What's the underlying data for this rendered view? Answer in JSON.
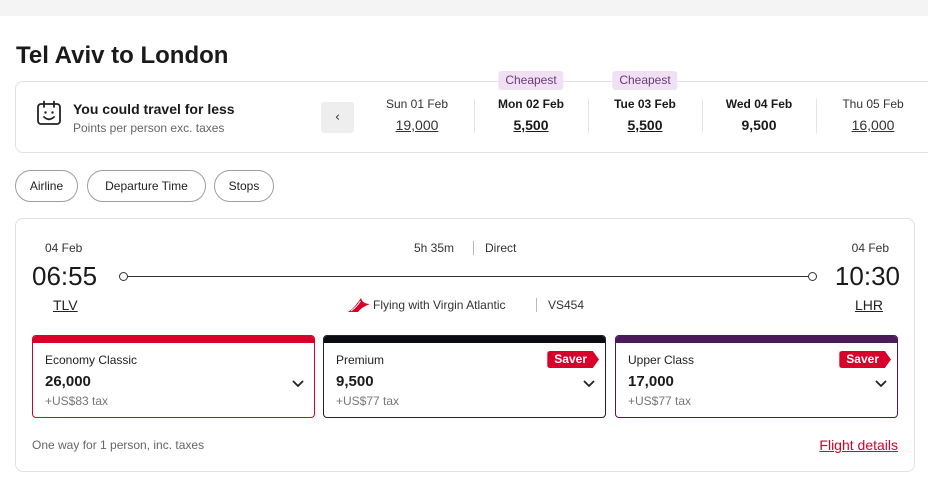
{
  "page": {
    "title": "Tel Aviv to London"
  },
  "fare_bar": {
    "headline": "You could travel for less",
    "subtext": "Points per person exc. taxes",
    "icon": "calendar-smile-icon",
    "prev_label": "‹",
    "dates": [
      {
        "label": "Sun 01 Feb",
        "points": "19,000",
        "cheapest": "",
        "selected": false
      },
      {
        "label": "Mon 02 Feb",
        "points": "5,500",
        "cheapest": "Cheapest",
        "selected": false
      },
      {
        "label": "Tue 03 Feb",
        "points": "5,500",
        "cheapest": "Cheapest",
        "selected": false
      },
      {
        "label": "Wed 04 Feb",
        "points": "9,500",
        "cheapest": "",
        "selected": true
      },
      {
        "label": "Thu 05 Feb",
        "points": "16,000",
        "cheapest": "",
        "selected": false
      }
    ]
  },
  "filters": [
    "Airline",
    "Departure Time",
    "Stops"
  ],
  "flight": {
    "depart_date": "04 Feb",
    "arrive_date": "04 Feb",
    "depart_time": "06:55",
    "arrive_time": "10:30",
    "depart_code": "TLV",
    "arrive_code": "LHR",
    "duration": "5h 35m",
    "stops": "Direct",
    "operator": "Flying with Virgin Atlantic",
    "flight_number": "VS454",
    "cabins": [
      {
        "name": "Economy Classic",
        "points": "26,000",
        "tax": "+US$83 tax",
        "saver": "",
        "color": "#d8002a"
      },
      {
        "name": "Premium",
        "points": "9,500",
        "tax": "+US$77 tax",
        "saver": "Saver",
        "color": "#0b0b14"
      },
      {
        "name": "Upper Class",
        "points": "17,000",
        "tax": "+US$77 tax",
        "saver": "Saver",
        "color": "#4b1a58"
      }
    ],
    "footnote": "One way for 1 person, inc. taxes",
    "details_link": "Flight details"
  },
  "colors": {
    "accent": "#d8002a",
    "cheapest_bg": "#efe1f3",
    "cheapest_text": "#6b3a78"
  }
}
